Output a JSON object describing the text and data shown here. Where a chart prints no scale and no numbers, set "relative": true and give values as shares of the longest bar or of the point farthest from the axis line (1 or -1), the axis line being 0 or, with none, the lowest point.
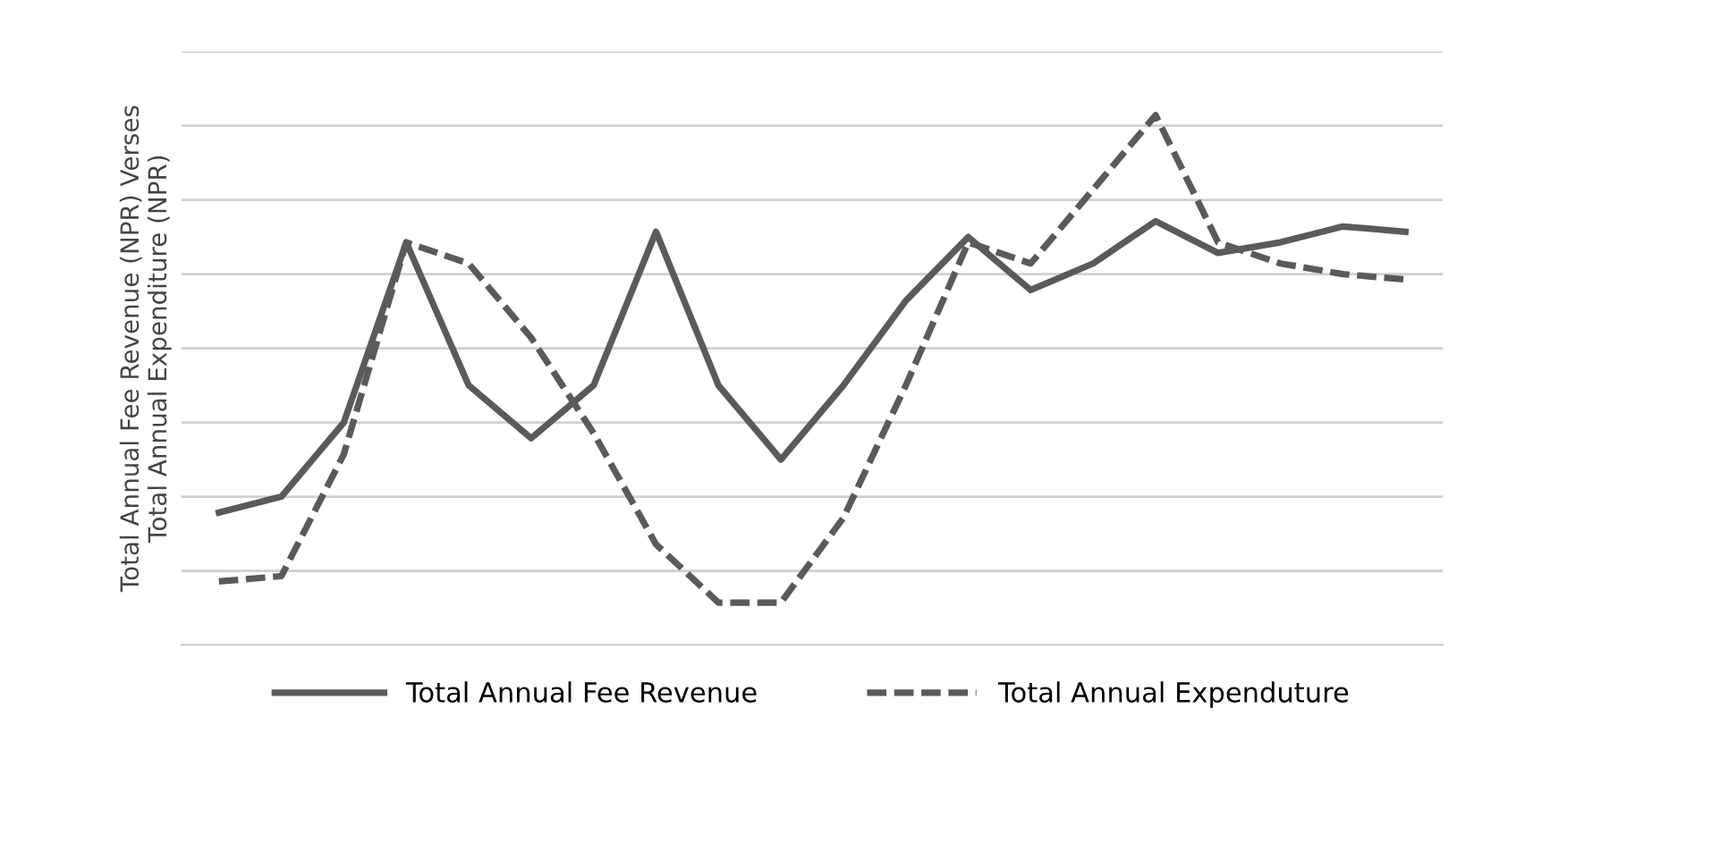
{
  "chart_data": {
    "type": "line",
    "relative": true,
    "ylabel": "Total Annual Fee Revenue (NPR) Verses\nTotal Annual Expenditure (NPR)",
    "categories": [
      null,
      null,
      null,
      null,
      null,
      null,
      null,
      null,
      null,
      null,
      null,
      null,
      null,
      null,
      null,
      null,
      null,
      null,
      null,
      null
    ],
    "series": [
      {
        "name": "Total Annual Fee Revenue",
        "color": "#5a5a5a",
        "line_style": "solid",
        "values": [
          0.25,
          0.28,
          0.42,
          0.76,
          0.49,
          0.39,
          0.49,
          0.78,
          0.49,
          0.35,
          0.49,
          0.65,
          0.77,
          0.67,
          0.72,
          0.8,
          0.74,
          0.76,
          0.79,
          0.78
        ]
      },
      {
        "name": "Total Annual Expenduture",
        "color": "#5a5a5a",
        "line_style": "dashed",
        "values": [
          0.12,
          0.13,
          0.36,
          0.76,
          0.72,
          0.58,
          0.4,
          0.19,
          0.08,
          0.08,
          0.24,
          0.49,
          0.76,
          0.72,
          0.86,
          1.0,
          0.76,
          0.72,
          0.7,
          0.69
        ]
      }
    ],
    "grid": "y",
    "legend": "bottom"
  }
}
